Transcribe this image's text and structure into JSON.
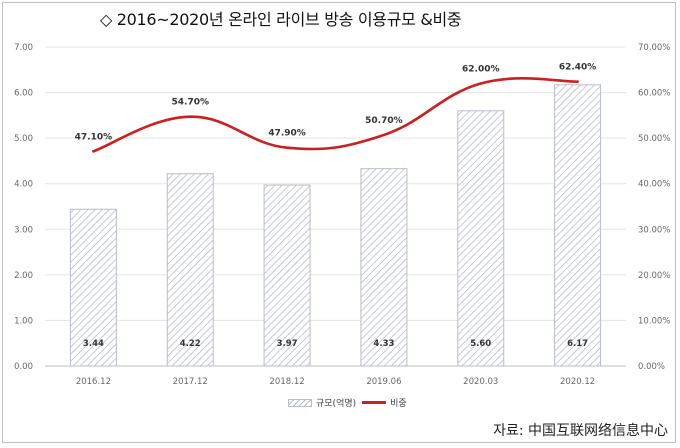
{
  "title": "◇ 2016~2020년 온라인 라이브 방송 이용규모 &비중",
  "source": "자료: 中国互联网络信息中心",
  "chart_data": {
    "type": "bar",
    "categories": [
      "2016.12",
      "2017.12",
      "2018.12",
      "2019.06",
      "2020.03",
      "2020.12"
    ],
    "series": [
      {
        "name": "규모(억명)",
        "type": "bar",
        "axis": "left",
        "values": [
          3.44,
          4.22,
          3.97,
          4.33,
          5.6,
          6.17
        ],
        "labels": [
          "3.44",
          "4.22",
          "3.97",
          "4.33",
          "5.60",
          "6.17"
        ]
      },
      {
        "name": "비중",
        "type": "line",
        "axis": "right",
        "values": [
          47.1,
          54.7,
          47.9,
          50.7,
          62.0,
          62.4
        ],
        "labels": [
          "47.10%",
          "54.70%",
          "47.90%",
          "50.70%",
          "62.00%",
          "62.40%"
        ]
      }
    ],
    "ylim": [
      0,
      7
    ],
    "y2lim": [
      0,
      70
    ],
    "yticks": [
      "0.00",
      "1.00",
      "2.00",
      "3.00",
      "4.00",
      "5.00",
      "6.00",
      "7.00"
    ],
    "y2ticks": [
      "0.00%",
      "10.00%",
      "20.00%",
      "30.00%",
      "40.00%",
      "50.00%",
      "60.00%",
      "70.00%"
    ],
    "grid": true,
    "legend": "bottom-center",
    "colors": {
      "bar_hatch": "#b8bdc8",
      "line": "#cc1f1f",
      "grid": "#e3e3e3",
      "axis_text": "#666666"
    }
  }
}
